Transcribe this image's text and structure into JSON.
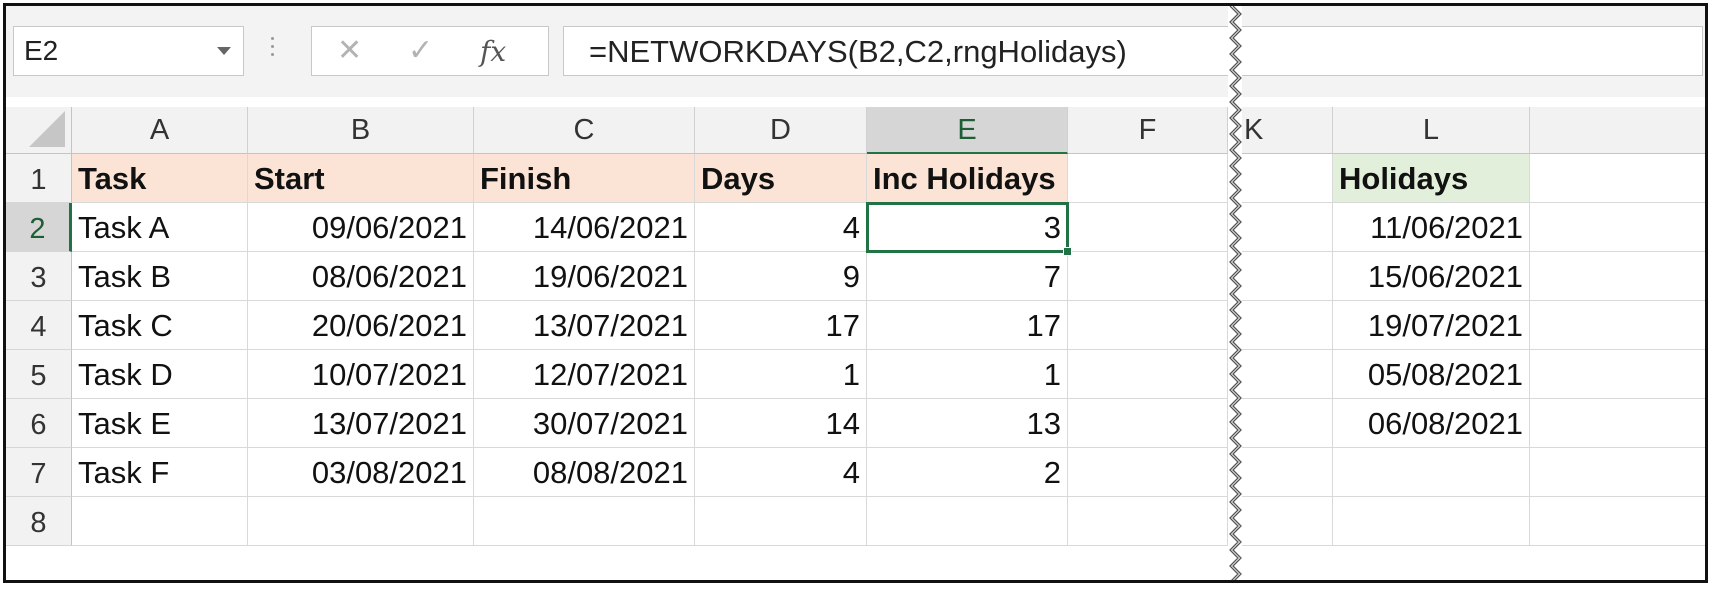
{
  "name_box": {
    "value": "E2"
  },
  "formula_bar": {
    "cancel_glyph": "✕",
    "enter_glyph": "✓",
    "fx_glyph": "fx",
    "formula": "=NETWORKDAYS(B2,C2,rngHolidays)"
  },
  "columns": [
    "A",
    "B",
    "C",
    "D",
    "E",
    "F",
    "K",
    "L"
  ],
  "rows": [
    "1",
    "2",
    "3",
    "4",
    "5",
    "6",
    "7",
    "8"
  ],
  "table": {
    "headers": [
      "Task",
      "Start",
      "Finish",
      "Days",
      "Inc Holidays"
    ],
    "rows": [
      [
        "Task A",
        "09/06/2021",
        "14/06/2021",
        "4",
        "3"
      ],
      [
        "Task B",
        "08/06/2021",
        "19/06/2021",
        "9",
        "7"
      ],
      [
        "Task C",
        "20/06/2021",
        "13/07/2021",
        "17",
        "17"
      ],
      [
        "Task D",
        "10/07/2021",
        "12/07/2021",
        "1",
        "1"
      ],
      [
        "Task E",
        "13/07/2021",
        "30/07/2021",
        "14",
        "13"
      ],
      [
        "Task F",
        "03/08/2021",
        "08/08/2021",
        "4",
        "2"
      ]
    ]
  },
  "holidays": {
    "header": "Holidays",
    "values": [
      "11/06/2021",
      "15/06/2021",
      "19/07/2021",
      "05/08/2021",
      "06/08/2021"
    ]
  },
  "active_cell": "E2",
  "colors": {
    "accent": "#217346",
    "header_fill": "#fbe4d5",
    "holiday_header_fill": "#e2efda"
  }
}
